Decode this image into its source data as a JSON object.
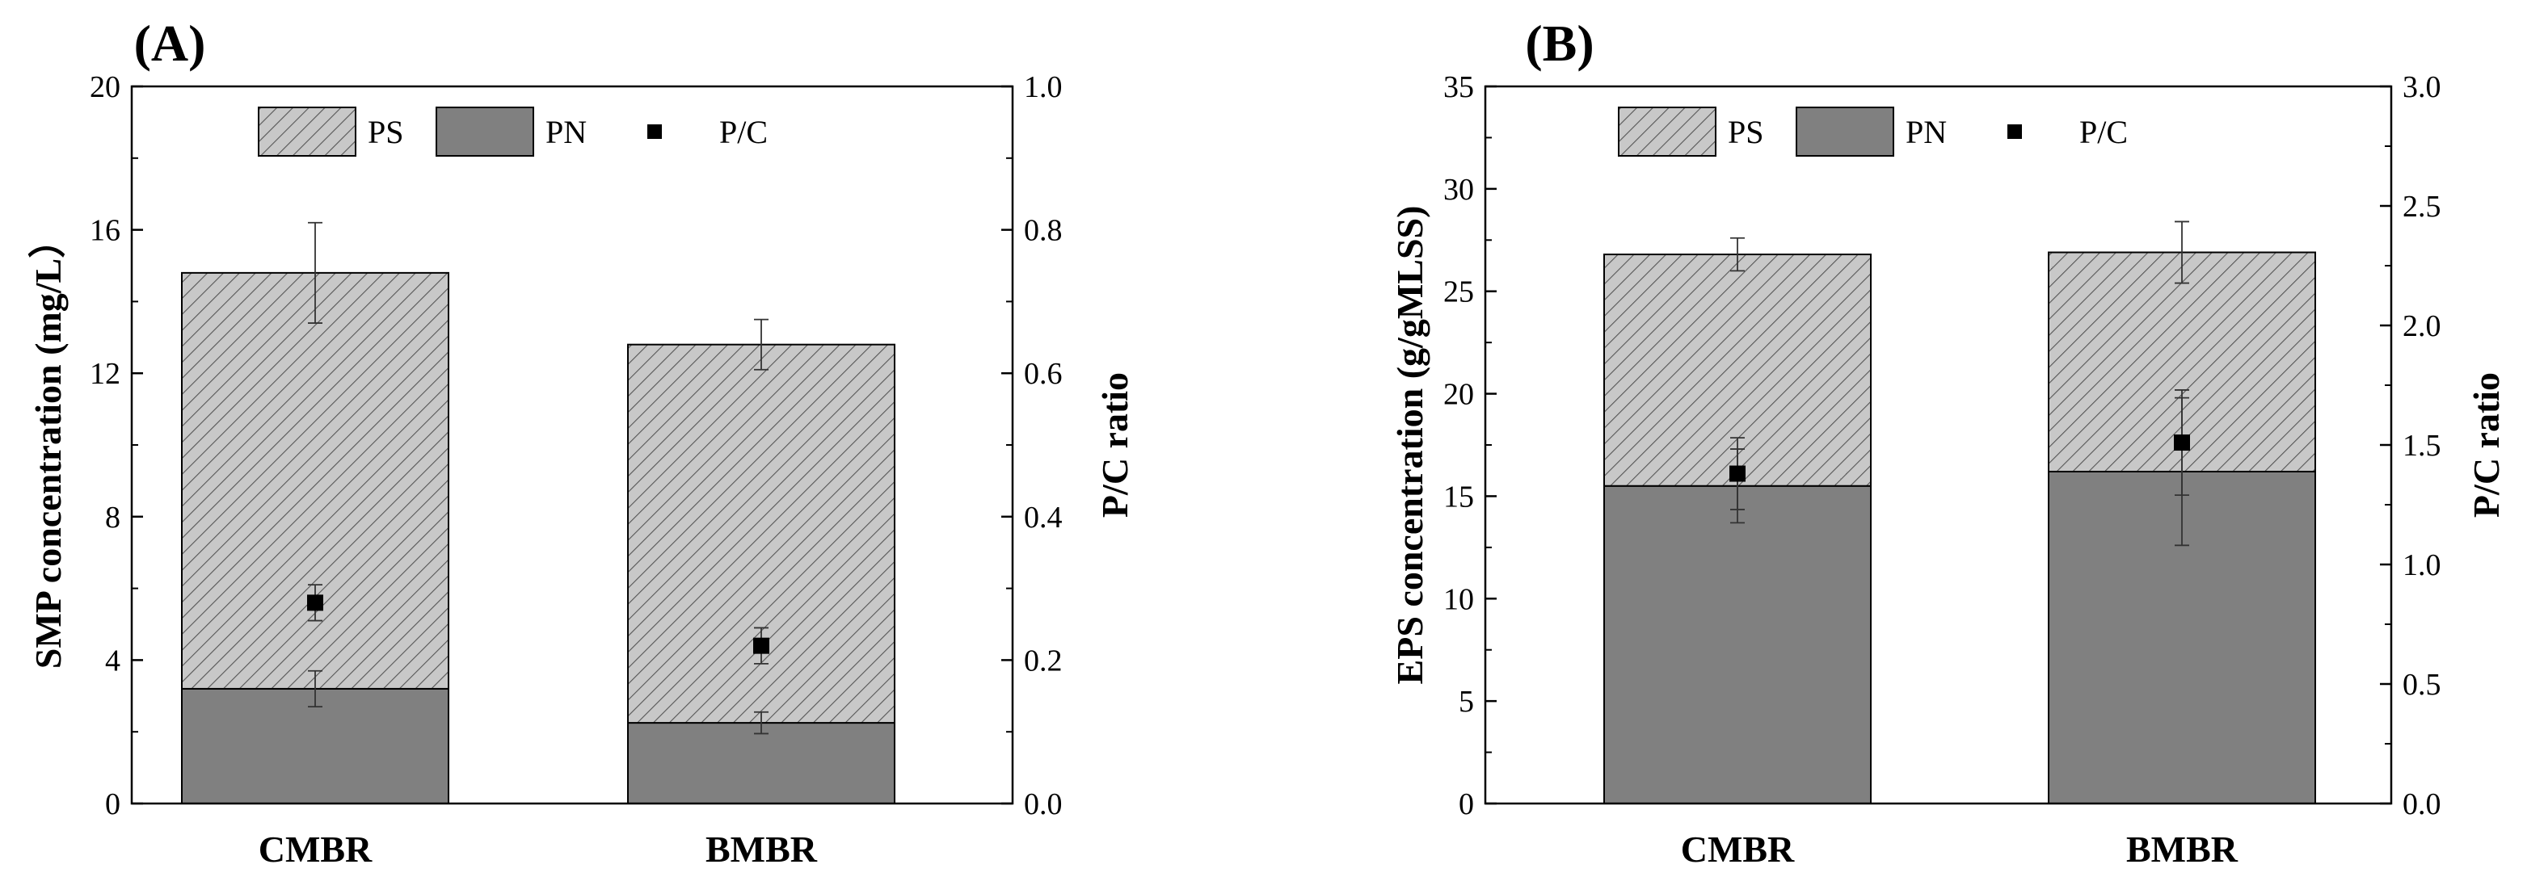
{
  "chart_data": [
    {
      "type": "bar",
      "panel_label": "(A)",
      "stacked": true,
      "categories": [
        "CMBR",
        "BMBR"
      ],
      "series": [
        {
          "name": "PN",
          "axis": "left",
          "values": [
            3.2,
            2.25
          ],
          "errors": [
            0.5,
            0.3
          ],
          "color": "#808080"
        },
        {
          "name": "PS",
          "axis": "left",
          "values": [
            11.6,
            10.55
          ],
          "errors": [
            1.4,
            0.7
          ],
          "pattern": "hatched",
          "color": "#bdbdbd"
        },
        {
          "name": "P/C",
          "axis": "right",
          "type": "scatter",
          "values": [
            0.28,
            0.22
          ],
          "errors": [
            0.025,
            0.025
          ],
          "color": "#000000"
        }
      ],
      "legend": {
        "items": [
          "PS",
          "PN",
          "P/C"
        ],
        "position": "top"
      },
      "ylabel": "SMP concentration (mg/L）",
      "ylabel_right": "P/C ratio",
      "ylim": [
        0,
        20
      ],
      "ylim_right": [
        0,
        1.0
      ],
      "yticks": [
        "0",
        "4",
        "8",
        "12",
        "16",
        "20"
      ],
      "yticks_right": [
        "0.0",
        "0.2",
        "0.4",
        "0.6",
        "0.8",
        "1.0"
      ],
      "grid": false
    },
    {
      "type": "bar",
      "panel_label": "(B)",
      "stacked": true,
      "categories": [
        "CMBR",
        "BMBR"
      ],
      "series": [
        {
          "name": "PN",
          "axis": "left",
          "values": [
            15.5,
            16.2
          ],
          "errors": [
            1.8,
            3.6
          ],
          "color": "#808080"
        },
        {
          "name": "PS",
          "axis": "left",
          "values": [
            11.3,
            10.7
          ],
          "errors": [
            0.8,
            1.5
          ],
          "pattern": "hatched",
          "color": "#bdbdbd"
        },
        {
          "name": "P/C",
          "axis": "right",
          "type": "scatter",
          "values": [
            1.38,
            1.51
          ],
          "errors": [
            0.15,
            0.22
          ],
          "color": "#000000"
        }
      ],
      "legend": {
        "items": [
          "PS",
          "PN",
          "P/C"
        ],
        "position": "top"
      },
      "ylabel": "EPS concentration (g/gMLSS)",
      "ylabel_right": "P/C ratio",
      "ylim": [
        0,
        35
      ],
      "ylim_right": [
        0,
        3.0
      ],
      "yticks": [
        "0",
        "5",
        "10",
        "15",
        "20",
        "25",
        "30",
        "35"
      ],
      "yticks_right": [
        "0.0",
        "0.5",
        "1.0",
        "1.5",
        "2.0",
        "2.5",
        "3.0"
      ],
      "grid": false
    }
  ]
}
